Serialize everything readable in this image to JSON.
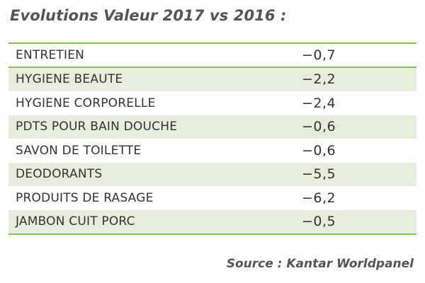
{
  "title": "Evolutions Valeur 2017 vs 2016 :",
  "source": "Source : Kantar Worldpanel",
  "colors": {
    "border": "#8bbf5a",
    "shade": "#e6eddc"
  },
  "chart_data": {
    "type": "table",
    "title": "Evolutions Valeur 2017 vs 2016 :",
    "rows": [
      {
        "category": "ENTRETIEN",
        "value": "-0,7"
      },
      {
        "category": "HYGIENE BEAUTE",
        "value": "-2,2"
      },
      {
        "category": "HYGIENE CORPORELLE",
        "value": "-2,4"
      },
      {
        "category": "PDTS POUR BAIN DOUCHE",
        "value": "-0,6"
      },
      {
        "category": "SAVON DE TOILETTE",
        "value": "-0,6"
      },
      {
        "category": "DEODORANTS",
        "value": "-5,5"
      },
      {
        "category": "PRODUITS DE RASAGE",
        "value": "-6,2"
      },
      {
        "category": "JAMBON CUIT PORC",
        "value": "-0,5"
      }
    ]
  }
}
